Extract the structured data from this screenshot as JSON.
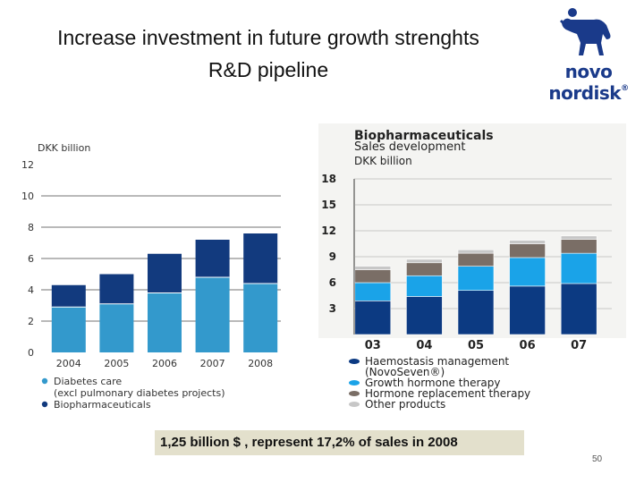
{
  "slide": {
    "title_line1": "Increase investment in future growth strenghts",
    "title_line2": "R&D pipeline",
    "callout": "1,25 billion $ , represent 17,2% of sales in 2008",
    "page_number": "50"
  },
  "logo": {
    "text": "novo nordisk",
    "reg": "®"
  },
  "colors": {
    "diabetes_care": "#3399cc",
    "biopharmaceuticals": "#123a7e",
    "haemostasis": "#0c3a82",
    "growth_hormone": "#1aa3e8",
    "hormone_replacement": "#7a6e66",
    "other_products": "#c7c7c7"
  },
  "chart_data": [
    {
      "type": "bar",
      "stacked": true,
      "ylabel": "DKK billion",
      "ylim": [
        0,
        12
      ],
      "yticks": [
        "0",
        "2",
        "4",
        "6",
        "8",
        "10",
        "12"
      ],
      "categories": [
        "2004",
        "2005",
        "2006",
        "2007",
        "2008"
      ],
      "series": [
        {
          "name": "Diabetes care\n(excl pulmonary diabetes projects)",
          "legend_line1": "Diabetes care",
          "legend_line2": "(excl pulmonary diabetes projects)",
          "values": [
            2.9,
            3.1,
            3.8,
            4.8,
            4.4
          ]
        },
        {
          "name": "Biopharmaceuticals",
          "legend_line1": "Biopharmaceuticals",
          "values": [
            1.4,
            1.9,
            2.5,
            2.4,
            3.2
          ]
        }
      ],
      "grid": true
    },
    {
      "type": "bar",
      "stacked": true,
      "title": "Biopharmaceuticals",
      "subtitle": "Sales development",
      "ylabel": "DKK billion",
      "ylim": [
        0,
        18
      ],
      "yticks": [
        "3",
        "6",
        "9",
        "12",
        "15",
        "18"
      ],
      "categories": [
        "03",
        "04",
        "05",
        "06",
        "07"
      ],
      "series": [
        {
          "name": "Haemostasis management (NovoSeven®)",
          "legend_line1": "Haemostasis management",
          "legend_line2": "(NovoSeven®)",
          "values": [
            3.9,
            4.4,
            5.1,
            5.6,
            5.9
          ]
        },
        {
          "name": "Growth hormone therapy",
          "legend_line1": "Growth hormone therapy",
          "values": [
            2.1,
            2.4,
            2.8,
            3.3,
            3.5
          ]
        },
        {
          "name": "Hormone replacement therapy",
          "legend_line1": "Hormone replacement therapy",
          "values": [
            1.5,
            1.5,
            1.5,
            1.6,
            1.6
          ]
        },
        {
          "name": "Other products",
          "legend_line1": "Other products",
          "values": [
            0.4,
            0.4,
            0.4,
            0.4,
            0.4
          ]
        }
      ],
      "grid": true
    }
  ]
}
